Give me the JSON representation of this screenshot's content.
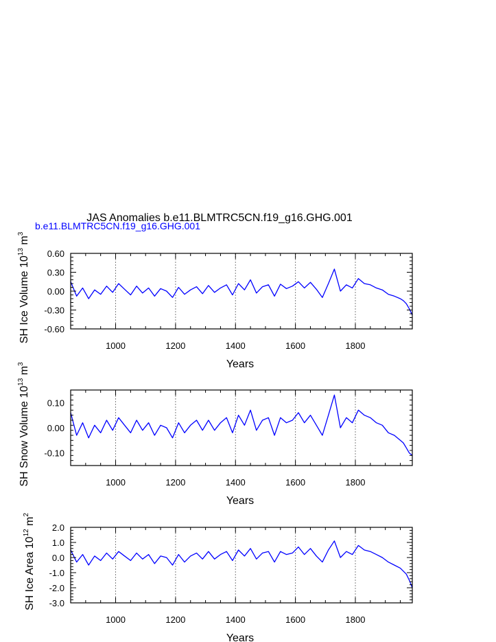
{
  "figure": {
    "title": "JAS Anomalies b.e11.BLMTRC5CN.f19_g16.GHG.001",
    "subtitle": "b.e11.BLMTRC5CN.f19_g16.GHG.001",
    "line_color": "#0000ff",
    "grid_color": "#808080"
  },
  "chart_data": [
    {
      "type": "line",
      "xlabel": "Years",
      "ylabel_main": "SH Ice Volume 10",
      "ylabel_exp": "13",
      "ylabel_unit": "m",
      "ylabel_unit_exp": "3",
      "xlim": [
        850,
        1990
      ],
      "ylim": [
        -0.6,
        0.6
      ],
      "xticks": [
        1000,
        1200,
        1400,
        1600,
        1800
      ],
      "xtick_labels": [
        "1000",
        "1200",
        "1400",
        "1600",
        "1800"
      ],
      "yticks": [
        -0.6,
        -0.3,
        0.0,
        0.3,
        0.6
      ],
      "ytick_labels": [
        "-0.60",
        "-0.30",
        "0.00",
        "0.30",
        "0.60"
      ],
      "vgrid": [
        1000,
        1200,
        1400,
        1600,
        1800
      ],
      "series": [
        {
          "color": "#0000ff",
          "x": [
            850,
            870,
            890,
            910,
            930,
            950,
            970,
            990,
            1010,
            1030,
            1050,
            1070,
            1090,
            1110,
            1130,
            1150,
            1170,
            1190,
            1210,
            1230,
            1250,
            1270,
            1290,
            1310,
            1330,
            1350,
            1370,
            1390,
            1410,
            1430,
            1450,
            1470,
            1490,
            1510,
            1530,
            1550,
            1570,
            1590,
            1610,
            1630,
            1650,
            1670,
            1690,
            1710,
            1730,
            1750,
            1770,
            1790,
            1810,
            1830,
            1850,
            1870,
            1890,
            1910,
            1930,
            1950,
            1960,
            1970,
            1980,
            1990
          ],
          "y": [
            0.15,
            -0.08,
            0.05,
            -0.12,
            0.02,
            -0.05,
            0.08,
            -0.02,
            0.12,
            0.03,
            -0.06,
            0.08,
            -0.03,
            0.05,
            -0.08,
            0.04,
            0.0,
            -0.1,
            0.06,
            -0.05,
            0.02,
            0.07,
            -0.04,
            0.09,
            -0.02,
            0.05,
            0.1,
            -0.06,
            0.12,
            0.02,
            0.18,
            -0.03,
            0.07,
            0.1,
            -0.08,
            0.11,
            0.04,
            0.08,
            0.15,
            0.05,
            0.14,
            0.03,
            -0.1,
            0.12,
            0.35,
            0.0,
            0.1,
            0.05,
            0.2,
            0.12,
            0.1,
            0.05,
            0.02,
            -0.05,
            -0.08,
            -0.12,
            -0.15,
            -0.2,
            -0.28,
            -0.38
          ]
        }
      ]
    },
    {
      "type": "line",
      "xlabel": "Years",
      "ylabel_main": "SH Snow Volume 10",
      "ylabel_exp": "13",
      "ylabel_unit": "m",
      "ylabel_unit_exp": "3",
      "xlim": [
        850,
        1990
      ],
      "ylim": [
        -0.15,
        0.15
      ],
      "xticks": [
        1000,
        1200,
        1400,
        1600,
        1800
      ],
      "xtick_labels": [
        "1000",
        "1200",
        "1400",
        "1600",
        "1800"
      ],
      "yticks": [
        -0.1,
        0.0,
        0.1
      ],
      "ytick_labels": [
        "-0.10",
        "0.00",
        "0.10"
      ],
      "vgrid": [
        1000,
        1200,
        1400,
        1600,
        1800
      ],
      "series": [
        {
          "color": "#0000ff",
          "x": [
            850,
            870,
            890,
            910,
            930,
            950,
            970,
            990,
            1010,
            1030,
            1050,
            1070,
            1090,
            1110,
            1130,
            1150,
            1170,
            1190,
            1210,
            1230,
            1250,
            1270,
            1290,
            1310,
            1330,
            1350,
            1370,
            1390,
            1410,
            1430,
            1450,
            1470,
            1490,
            1510,
            1530,
            1550,
            1570,
            1590,
            1610,
            1630,
            1650,
            1670,
            1690,
            1710,
            1730,
            1750,
            1770,
            1790,
            1810,
            1830,
            1850,
            1870,
            1890,
            1910,
            1930,
            1950,
            1960,
            1970,
            1980,
            1990
          ],
          "y": [
            0.06,
            -0.03,
            0.02,
            -0.04,
            0.01,
            -0.02,
            0.03,
            -0.01,
            0.04,
            0.01,
            -0.02,
            0.03,
            -0.01,
            0.02,
            -0.03,
            0.01,
            0.0,
            -0.04,
            0.02,
            -0.02,
            0.01,
            0.03,
            -0.01,
            0.03,
            -0.01,
            0.02,
            0.04,
            -0.02,
            0.05,
            0.01,
            0.07,
            -0.01,
            0.03,
            0.04,
            -0.03,
            0.04,
            0.02,
            0.03,
            0.06,
            0.02,
            0.05,
            0.01,
            -0.03,
            0.05,
            0.13,
            0.0,
            0.04,
            0.02,
            0.07,
            0.05,
            0.04,
            0.02,
            0.01,
            -0.02,
            -0.03,
            -0.05,
            -0.06,
            -0.08,
            -0.1,
            -0.11
          ]
        }
      ]
    },
    {
      "type": "line",
      "xlabel": "Years",
      "ylabel_main": "SH Ice Area 10",
      "ylabel_exp": "12",
      "ylabel_unit": "m",
      "ylabel_unit_exp": "2",
      "xlim": [
        850,
        1990
      ],
      "ylim": [
        -3.0,
        2.0
      ],
      "xticks": [
        1000,
        1200,
        1400,
        1600,
        1800
      ],
      "xtick_labels": [
        "1000",
        "1200",
        "1400",
        "1600",
        "1800"
      ],
      "yticks": [
        -3.0,
        -2.0,
        -1.0,
        0.0,
        1.0,
        2.0
      ],
      "ytick_labels": [
        "-3.0",
        "-2.0",
        "-1.0",
        "0.0",
        "1.0",
        "2.0"
      ],
      "vgrid": [
        1000,
        1200,
        1400,
        1600,
        1800
      ],
      "series": [
        {
          "color": "#0000ff",
          "x": [
            850,
            870,
            890,
            910,
            930,
            950,
            970,
            990,
            1010,
            1030,
            1050,
            1070,
            1090,
            1110,
            1130,
            1150,
            1170,
            1190,
            1210,
            1230,
            1250,
            1270,
            1290,
            1310,
            1330,
            1350,
            1370,
            1390,
            1410,
            1430,
            1450,
            1470,
            1490,
            1510,
            1530,
            1550,
            1570,
            1590,
            1610,
            1630,
            1650,
            1670,
            1690,
            1710,
            1730,
            1750,
            1770,
            1790,
            1810,
            1830,
            1850,
            1870,
            1890,
            1910,
            1930,
            1950,
            1960,
            1970,
            1980,
            1990
          ],
          "y": [
            0.5,
            -0.3,
            0.2,
            -0.5,
            0.1,
            -0.2,
            0.3,
            -0.1,
            0.4,
            0.1,
            -0.2,
            0.3,
            -0.1,
            0.2,
            -0.4,
            0.1,
            0.0,
            -0.5,
            0.2,
            -0.3,
            0.1,
            0.3,
            -0.1,
            0.4,
            -0.1,
            0.2,
            0.4,
            -0.2,
            0.5,
            0.1,
            0.6,
            -0.1,
            0.3,
            0.4,
            -0.3,
            0.4,
            0.2,
            0.3,
            0.7,
            0.2,
            0.6,
            0.1,
            -0.3,
            0.5,
            1.1,
            0.0,
            0.4,
            0.2,
            0.8,
            0.5,
            0.4,
            0.2,
            0.0,
            -0.3,
            -0.5,
            -0.7,
            -0.9,
            -1.1,
            -1.5,
            -2.0
          ]
        }
      ]
    }
  ]
}
